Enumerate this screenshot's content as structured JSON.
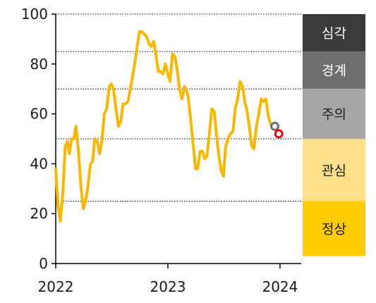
{
  "chart_data": {
    "type": "line",
    "title": "",
    "xlabel": "",
    "ylabel": "",
    "ylim": [
      0,
      100
    ],
    "xlim": [
      "2022-01-01",
      "2024-03-10"
    ],
    "y_ticks": [
      "0",
      "20",
      "40",
      "60",
      "80",
      "100"
    ],
    "x_ticks": [
      {
        "label": "2022",
        "date": "2022-01-01"
      },
      {
        "label": "2023",
        "date": "2023-01-01"
      },
      {
        "label": "2024",
        "date": "2024-01-01"
      }
    ],
    "grid": "dotted horizontal lines at 25, 50, 70, 85, 100",
    "thresholds": [
      25,
      50,
      70,
      85,
      100
    ],
    "line_color": "#F5B800",
    "series": [
      {
        "name": "",
        "points": [
          [
            "2022-01-01",
            38
          ],
          [
            "2022-01-08",
            24
          ],
          [
            "2022-01-16",
            17
          ],
          [
            "2022-01-24",
            28
          ],
          [
            "2022-02-01",
            47
          ],
          [
            "2022-02-08",
            49
          ],
          [
            "2022-02-14",
            44
          ],
          [
            "2022-02-22",
            50
          ],
          [
            "2022-03-01",
            50
          ],
          [
            "2022-03-08",
            55
          ],
          [
            "2022-03-16",
            45
          ],
          [
            "2022-03-24",
            31
          ],
          [
            "2022-04-01",
            22
          ],
          [
            "2022-04-08",
            25
          ],
          [
            "2022-04-16",
            31
          ],
          [
            "2022-04-24",
            40
          ],
          [
            "2022-05-01",
            41
          ],
          [
            "2022-05-08",
            50
          ],
          [
            "2022-05-16",
            49
          ],
          [
            "2022-05-24",
            44
          ],
          [
            "2022-06-01",
            50
          ],
          [
            "2022-06-08",
            60
          ],
          [
            "2022-06-16",
            62
          ],
          [
            "2022-06-24",
            71
          ],
          [
            "2022-07-01",
            72
          ],
          [
            "2022-07-08",
            70
          ],
          [
            "2022-07-16",
            62
          ],
          [
            "2022-07-24",
            55
          ],
          [
            "2022-08-01",
            57
          ],
          [
            "2022-08-08",
            64
          ],
          [
            "2022-08-16",
            64
          ],
          [
            "2022-08-24",
            65
          ],
          [
            "2022-09-01",
            70
          ],
          [
            "2022-09-08",
            75
          ],
          [
            "2022-09-16",
            81
          ],
          [
            "2022-09-24",
            88
          ],
          [
            "2022-10-01",
            93
          ],
          [
            "2022-10-08",
            93
          ],
          [
            "2022-10-16",
            92
          ],
          [
            "2022-10-24",
            91
          ],
          [
            "2022-11-01",
            88
          ],
          [
            "2022-11-08",
            87
          ],
          [
            "2022-11-16",
            89
          ],
          [
            "2022-11-24",
            83
          ],
          [
            "2022-12-01",
            77
          ],
          [
            "2022-12-08",
            77
          ],
          [
            "2022-12-16",
            76
          ],
          [
            "2022-12-24",
            80
          ],
          [
            "2023-01-01",
            76
          ],
          [
            "2023-01-08",
            73
          ],
          [
            "2023-01-16",
            84
          ],
          [
            "2023-01-24",
            83
          ],
          [
            "2023-02-01",
            77
          ],
          [
            "2023-02-08",
            70
          ],
          [
            "2023-02-16",
            66
          ],
          [
            "2023-02-24",
            71
          ],
          [
            "2023-03-01",
            70
          ],
          [
            "2023-03-08",
            67
          ],
          [
            "2023-03-16",
            58
          ],
          [
            "2023-03-24",
            48
          ],
          [
            "2023-04-01",
            38
          ],
          [
            "2023-04-08",
            38
          ],
          [
            "2023-04-16",
            45
          ],
          [
            "2023-04-24",
            45
          ],
          [
            "2023-05-01",
            42
          ],
          [
            "2023-05-08",
            43
          ],
          [
            "2023-05-16",
            52
          ],
          [
            "2023-05-24",
            62
          ],
          [
            "2023-06-01",
            61
          ],
          [
            "2023-06-08",
            52
          ],
          [
            "2023-06-16",
            43
          ],
          [
            "2023-06-24",
            37
          ],
          [
            "2023-07-01",
            35
          ],
          [
            "2023-07-08",
            47
          ],
          [
            "2023-07-16",
            50
          ],
          [
            "2023-07-24",
            52
          ],
          [
            "2023-08-01",
            53
          ],
          [
            "2023-08-08",
            62
          ],
          [
            "2023-08-16",
            66
          ],
          [
            "2023-08-24",
            73
          ],
          [
            "2023-09-01",
            71
          ],
          [
            "2023-09-08",
            65
          ],
          [
            "2023-09-16",
            61
          ],
          [
            "2023-09-24",
            54
          ],
          [
            "2023-10-01",
            47
          ],
          [
            "2023-10-08",
            46
          ],
          [
            "2023-10-16",
            55
          ],
          [
            "2023-10-24",
            60
          ],
          [
            "2023-11-01",
            66
          ],
          [
            "2023-11-08",
            65
          ],
          [
            "2023-11-16",
            66
          ],
          [
            "2023-11-24",
            59
          ],
          [
            "2023-12-01",
            56
          ],
          [
            "2023-12-08",
            55
          ]
        ]
      }
    ],
    "markers": [
      {
        "date": "2023-12-15",
        "value": 55,
        "style": "gray-ring"
      },
      {
        "date": "2023-12-28",
        "value": 52,
        "style": "red-ring"
      }
    ],
    "zones": [
      {
        "label": "심각",
        "from": 85,
        "to": 100,
        "color": "#3A3A3A",
        "text_color": "#FFFFFF"
      },
      {
        "label": "경계",
        "from": 70,
        "to": 85,
        "color": "#6E6E6E",
        "text_color": "#FFFFFF"
      },
      {
        "label": "주의",
        "from": 50,
        "to": 70,
        "color": "#A7A7A7",
        "text_color": "#1A1A1A"
      },
      {
        "label": "관심",
        "from": 25,
        "to": 50,
        "color": "#FFE08A",
        "text_color": "#1A1A1A"
      },
      {
        "label": "정상",
        "from": 3,
        "to": 25,
        "color": "#FFCC00",
        "text_color": "#1A1A1A"
      }
    ]
  }
}
